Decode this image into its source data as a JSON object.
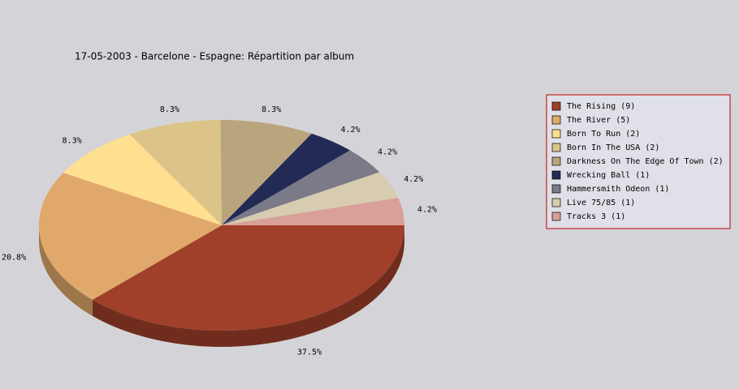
{
  "chart_data": {
    "type": "pie",
    "title": "17-05-2003 - Barcelone - Espagne:  Répartition par album",
    "categories": [
      "The Rising (9)",
      "The River (5)",
      "Born To Run (2)",
      "Born In The USA (2)",
      "Darkness On The Edge Of Town (2)",
      "Wrecking Ball (1)",
      "Hammersmith Odeon  (1)",
      "Live 75/85 (1)",
      "Tracks 3 (1)"
    ],
    "values": [
      37.5,
      20.8,
      8.3,
      8.3,
      8.3,
      4.2,
      4.2,
      4.2,
      4.2
    ],
    "value_labels": [
      "37.5%",
      "20.8%",
      "8.3%",
      "8.3%",
      "8.3%",
      "4.2%",
      "4.2%",
      "4.2%",
      "4.2%"
    ],
    "colors": [
      "#a0402a",
      "#e0a86a",
      "#ffe090",
      "#dcc488",
      "#b8a57e",
      "#222a55",
      "#7a7a88",
      "#d8ccb0",
      "#d8a098"
    ]
  }
}
